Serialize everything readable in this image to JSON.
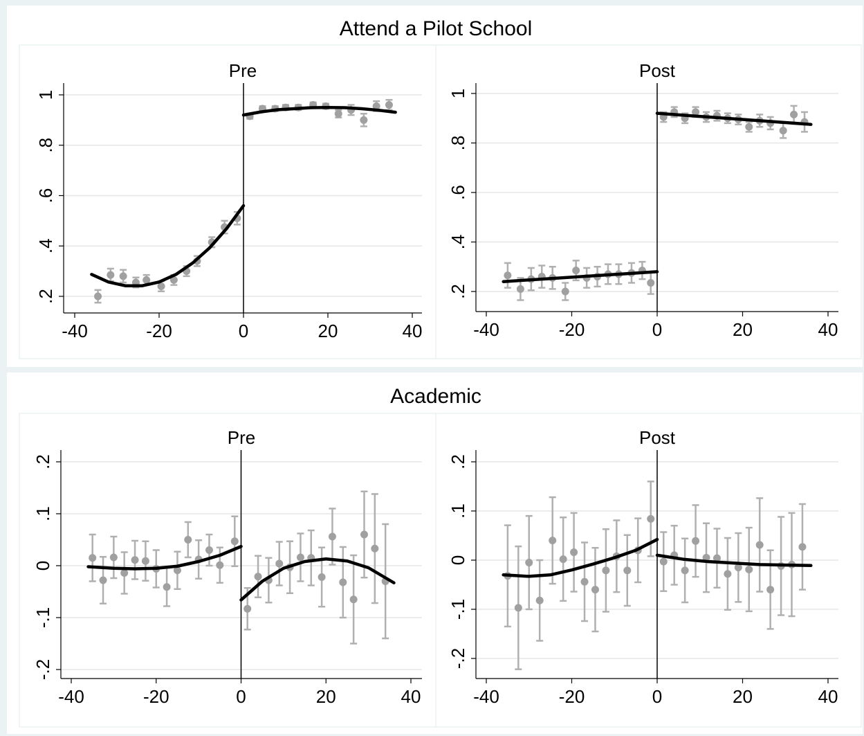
{
  "row_titles": [
    "Attend a Pilot School",
    "Academic"
  ],
  "chart_data": [
    {
      "type": "scatter",
      "title": "Pre",
      "xlim": [
        -40,
        40
      ],
      "ylim": [
        0.2,
        1
      ],
      "xticks": [
        -40,
        -20,
        0,
        20,
        40
      ],
      "yticks": [
        {
          "value": 0.2,
          "label": ".2"
        },
        {
          "value": 0.4,
          "label": ".4"
        },
        {
          "value": 0.6,
          "label": ".6"
        },
        {
          "value": 0.8,
          "label": ".8"
        },
        1
      ],
      "grid": true,
      "vline": 0,
      "series": [
        {
          "type": "scatter",
          "color": "#a0a0a0",
          "x": [
            -34.5,
            -31.5,
            -28.5,
            -25.5,
            -23,
            -19.5,
            -16.5,
            -13.5,
            -11,
            -7.5,
            -4.5,
            -1.5,
            1.5,
            4.5,
            7.5,
            10,
            13,
            16.5,
            19.5,
            22.5,
            25.5,
            28.5,
            31.5,
            34.5
          ],
          "values": [
            0.2,
            0.285,
            0.28,
            0.255,
            0.265,
            0.24,
            0.265,
            0.3,
            0.34,
            0.415,
            0.475,
            0.51,
            0.915,
            0.945,
            0.945,
            0.95,
            0.95,
            0.96,
            0.955,
            0.925,
            0.94,
            0.9,
            0.955,
            0.96
          ],
          "errors": [
            0.025,
            0.025,
            0.025,
            0.02,
            0.02,
            0.02,
            0.02,
            0.02,
            0.02,
            0.02,
            0.025,
            0.025,
            0.01,
            0.01,
            0.01,
            0.01,
            0.01,
            0.01,
            0.01,
            0.015,
            0.02,
            0.025,
            0.02,
            0.02
          ]
        },
        {
          "type": "line",
          "color": "#000000",
          "x": [
            -36,
            -32,
            -28,
            -24,
            -20,
            -16,
            -12,
            -8,
            -4,
            0
          ],
          "values": [
            0.287,
            0.257,
            0.242,
            0.242,
            0.257,
            0.287,
            0.333,
            0.393,
            0.469,
            0.56
          ]
        },
        {
          "type": "line",
          "color": "#000000",
          "x": [
            0,
            4,
            8,
            12,
            16,
            20,
            24,
            28,
            32,
            36
          ],
          "values": [
            0.92,
            0.932,
            0.941,
            0.945,
            0.949,
            0.95,
            0.949,
            0.945,
            0.939,
            0.931
          ]
        }
      ]
    },
    {
      "type": "scatter",
      "title": "Post",
      "xlim": [
        -40,
        40
      ],
      "ylim": [
        0.2,
        1
      ],
      "xticks": [
        -40,
        -20,
        0,
        20,
        40
      ],
      "yticks": [
        {
          "value": 0.2,
          "label": ".2"
        },
        {
          "value": 0.4,
          "label": ".4"
        },
        {
          "value": 0.6,
          "label": ".6"
        },
        {
          "value": 0.8,
          "label": ".8"
        },
        1
      ],
      "grid": true,
      "vline": 0,
      "series": [
        {
          "type": "scatter",
          "color": "#a0a0a0",
          "x": [
            -35,
            -32,
            -29.5,
            -27,
            -24.5,
            -21.5,
            -19,
            -16.5,
            -14,
            -11.5,
            -9,
            -6,
            -3.5,
            -1.5,
            1.5,
            4,
            6.5,
            9,
            11.5,
            14,
            16.5,
            19,
            21.5,
            24,
            26.5,
            29.5,
            32,
            34.5
          ],
          "values": [
            0.265,
            0.21,
            0.25,
            0.26,
            0.255,
            0.2,
            0.285,
            0.255,
            0.26,
            0.27,
            0.27,
            0.275,
            0.285,
            0.235,
            0.905,
            0.925,
            0.9,
            0.925,
            0.905,
            0.91,
            0.9,
            0.895,
            0.865,
            0.89,
            0.88,
            0.85,
            0.915,
            0.885
          ],
          "errors": [
            0.05,
            0.045,
            0.045,
            0.045,
            0.045,
            0.035,
            0.04,
            0.04,
            0.04,
            0.04,
            0.04,
            0.04,
            0.035,
            0.045,
            0.02,
            0.02,
            0.02,
            0.02,
            0.02,
            0.02,
            0.02,
            0.02,
            0.02,
            0.025,
            0.025,
            0.03,
            0.035,
            0.04
          ]
        },
        {
          "type": "line",
          "color": "#000000",
          "x": [
            -36,
            0
          ],
          "values": [
            0.24,
            0.28
          ]
        },
        {
          "type": "line",
          "color": "#000000",
          "x": [
            0,
            36
          ],
          "values": [
            0.92,
            0.875
          ]
        }
      ]
    },
    {
      "type": "scatter",
      "title": "Pre",
      "xlim": [
        -40,
        40
      ],
      "ylim": [
        -0.2,
        0.2
      ],
      "xticks": [
        -40,
        -20,
        0,
        20,
        40
      ],
      "yticks": [
        {
          "value": -0.2,
          "label": "-.2"
        },
        {
          "value": -0.1,
          "label": "-.1"
        },
        0,
        {
          "value": 0.1,
          "label": ".1"
        },
        {
          "value": 0.2,
          "label": ".2"
        }
      ],
      "grid": true,
      "vline": 0,
      "series": [
        {
          "type": "scatter",
          "color": "#a0a0a0",
          "x": [
            -35,
            -32.5,
            -30,
            -27.5,
            -25,
            -22.5,
            -20,
            -17.5,
            -15,
            -12.5,
            -10,
            -7.5,
            -5,
            -1.5,
            1.5,
            4,
            6.5,
            9,
            11.5,
            14,
            16.5,
            19,
            21.5,
            24,
            26.5,
            29,
            31.5,
            34
          ],
          "values": [
            0.015,
            -0.028,
            0.016,
            -0.014,
            0.011,
            0.009,
            -0.006,
            -0.041,
            -0.009,
            0.05,
            0.012,
            0.03,
            0.001,
            0.047,
            -0.083,
            -0.021,
            -0.028,
            0.004,
            -0.003,
            0.016,
            0.015,
            -0.022,
            0.056,
            -0.032,
            -0.065,
            0.06,
            0.033,
            -0.03
          ],
          "errors": [
            0.045,
            0.045,
            0.04,
            0.04,
            0.037,
            0.038,
            0.036,
            0.037,
            0.036,
            0.034,
            0.037,
            0.03,
            0.034,
            0.048,
            0.04,
            0.04,
            0.043,
            0.042,
            0.05,
            0.046,
            0.053,
            0.057,
            0.054,
            0.068,
            0.085,
            0.083,
            0.105,
            0.11
          ]
        },
        {
          "type": "line",
          "color": "#000000",
          "x": [
            -36,
            -30,
            -25,
            -20,
            -15,
            -10,
            -5,
            0
          ],
          "values": [
            -0.002,
            -0.005,
            -0.006,
            -0.005,
            -0.001,
            0.008,
            0.02,
            0.037
          ]
        },
        {
          "type": "line",
          "color": "#000000",
          "x": [
            0,
            5,
            10,
            15,
            20,
            25,
            30,
            36
          ],
          "values": [
            -0.066,
            -0.03,
            -0.005,
            0.008,
            0.013,
            0.009,
            -0.004,
            -0.033
          ]
        }
      ]
    },
    {
      "type": "scatter",
      "title": "Post",
      "xlim": [
        -40,
        40
      ],
      "ylim": [
        -0.2,
        0.2
      ],
      "xticks": [
        -40,
        -20,
        0,
        20,
        40
      ],
      "yticks": [
        {
          "value": -0.2,
          "label": "-.2"
        },
        {
          "value": -0.1,
          "label": "-.1"
        },
        0,
        {
          "value": 0.1,
          "label": ".1"
        },
        {
          "value": 0.2,
          "label": ".2"
        }
      ],
      "grid": true,
      "vline": 0,
      "series": [
        {
          "type": "scatter",
          "color": "#a0a0a0",
          "x": [
            -35,
            -32.5,
            -30,
            -27.5,
            -24.5,
            -22,
            -19.5,
            -17,
            -14.5,
            -12,
            -9.5,
            -7,
            -4.5,
            -1.5,
            1.5,
            4,
            6.5,
            9,
            11.5,
            14,
            16.5,
            19,
            21.5,
            24,
            26.5,
            29,
            31.5,
            34
          ],
          "values": [
            -0.032,
            -0.097,
            -0.005,
            -0.082,
            0.04,
            0.002,
            0.016,
            -0.044,
            -0.06,
            -0.021,
            0.008,
            -0.021,
            0.02,
            0.084,
            -0.003,
            0.01,
            -0.021,
            0.039,
            0.005,
            0.004,
            -0.028,
            -0.015,
            -0.019,
            0.031,
            -0.06,
            -0.012,
            -0.009,
            0.027
          ],
          "errors": [
            0.103,
            0.125,
            0.095,
            0.082,
            0.088,
            0.085,
            0.08,
            0.08,
            0.085,
            0.084,
            0.073,
            0.072,
            0.065,
            0.076,
            0.06,
            0.06,
            0.065,
            0.073,
            0.07,
            0.06,
            0.073,
            0.07,
            0.085,
            0.095,
            0.08,
            0.1,
            0.105,
            0.087
          ]
        },
        {
          "type": "line",
          "color": "#000000",
          "x": [
            -36,
            -30,
            -25,
            -20,
            -15,
            -10,
            -5,
            0
          ],
          "values": [
            -0.03,
            -0.033,
            -0.03,
            -0.02,
            -0.008,
            0.005,
            0.02,
            0.042
          ]
        },
        {
          "type": "line",
          "color": "#000000",
          "x": [
            0,
            6,
            12,
            18,
            24,
            30,
            36
          ],
          "values": [
            0.01,
            0.002,
            -0.003,
            -0.006,
            -0.009,
            -0.01,
            -0.011
          ]
        }
      ]
    }
  ]
}
